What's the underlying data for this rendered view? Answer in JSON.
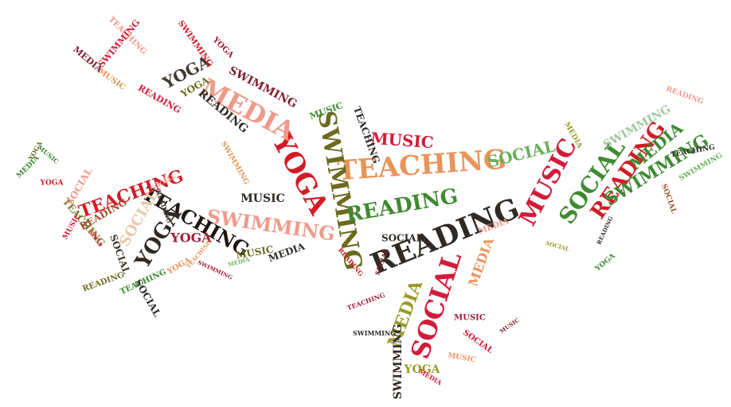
{
  "words": [
    {
      "text": "READING",
      "color": "#2e2a26",
      "size": 36,
      "rot": -22
    },
    {
      "text": "TEACHING",
      "color": "#e8945a",
      "size": 34,
      "rot": -4
    },
    {
      "text": "SWIMMING",
      "color": "#6b6a1e",
      "size": 30,
      "rot": 80
    },
    {
      "text": "YOGA",
      "color": "#d21c26",
      "size": 34,
      "rot": 62
    },
    {
      "text": "MEDIA",
      "color": "#ef9a8a",
      "size": 32,
      "rot": 28
    },
    {
      "text": "SOCIAL",
      "color": "#d21c3a",
      "size": 32,
      "rot": -72
    },
    {
      "text": "MUSIC",
      "color": "#d21c3a",
      "size": 30,
      "rot": -62
    },
    {
      "text": "SOCIAL",
      "color": "#3f8a32",
      "size": 28,
      "rot": -55
    },
    {
      "text": "READING",
      "color": "#d21c26",
      "size": 26,
      "rot": -55
    },
    {
      "text": "SWIMMING",
      "color": "#3f8a32",
      "size": 22,
      "rot": -32
    },
    {
      "text": "MEDIA",
      "color": "#3f8a32",
      "size": 20,
      "rot": -40
    },
    {
      "text": "READING",
      "color": "#3f8a32",
      "size": 26,
      "rot": -10
    },
    {
      "text": "SWIMMING",
      "color": "#ef9a8a",
      "size": 24,
      "rot": 8
    },
    {
      "text": "TEACHING",
      "color": "#1a1612",
      "size": 24,
      "rot": 30
    },
    {
      "text": "YOGA",
      "color": "#2e2a26",
      "size": 26,
      "rot": -58
    },
    {
      "text": "TEACHING",
      "color": "#d21c26",
      "size": 22,
      "rot": -20
    },
    {
      "text": "SOCIAL",
      "color": "#e8c8a8",
      "size": 18,
      "rot": -60
    },
    {
      "text": "MUSIC",
      "color": "#d21c3a",
      "size": 20,
      "rot": 4
    },
    {
      "text": "SOCIAL",
      "color": "#6bb05a",
      "size": 20,
      "rot": -14
    },
    {
      "text": "MEDIA",
      "color": "#9a9a2a",
      "size": 22,
      "rot": -70
    },
    {
      "text": "SWIMMING",
      "color": "#2e2a26",
      "size": 14,
      "rot": -90
    },
    {
      "text": "YOGA",
      "color": "#3f3a30",
      "size": 20,
      "rot": -28
    },
    {
      "text": "MUSIC",
      "color": "#2e2a26",
      "size": 14,
      "rot": 0
    },
    {
      "text": "MEDIA",
      "color": "#e8945a",
      "size": 16,
      "rot": -70
    },
    {
      "text": "YOGA",
      "color": "#a01e3a",
      "size": 16,
      "rot": 0
    },
    {
      "text": "READING",
      "color": "#2e2a26",
      "size": 14,
      "rot": 40
    },
    {
      "text": "SWIMMING",
      "color": "#7a2030",
      "size": 14,
      "rot": 28
    },
    {
      "text": "MUSIC",
      "color": "#6b6a1e",
      "size": 12,
      "rot": -10
    },
    {
      "text": "MEDIA",
      "color": "#2e2a26",
      "size": 12,
      "rot": -20
    },
    {
      "text": "SOCIAL",
      "color": "#2e2a26",
      "size": 12,
      "rot": 0
    },
    {
      "text": "YOGA",
      "color": "#9a9a2a",
      "size": 14,
      "rot": 0
    },
    {
      "text": "TEACHING",
      "color": "#7a7a2a",
      "size": 12,
      "rot": 50
    },
    {
      "text": "READING",
      "color": "#a0522d",
      "size": 12,
      "rot": -30
    },
    {
      "text": "SOCIAL",
      "color": "#2e2a26",
      "size": 12,
      "rot": 60
    },
    {
      "text": "SWIMMING",
      "color": "#a0c8a0",
      "size": 14,
      "rot": -30
    },
    {
      "text": "MUSIC",
      "color": "#3f8a32",
      "size": 11,
      "rot": -20
    },
    {
      "text": "SOCIAL",
      "color": "#3f3a30",
      "size": 12,
      "rot": 70
    },
    {
      "text": "SOCIAL",
      "color": "#ef9a8a",
      "size": 12,
      "rot": -60
    },
    {
      "text": "SWIMMING",
      "color": "#d21c3a",
      "size": 11,
      "rot": -50
    },
    {
      "text": "TEACHING",
      "color": "#ef9a8a",
      "size": 10,
      "rot": 45
    },
    {
      "text": "MUSIC",
      "color": "#e8945a",
      "size": 10,
      "rot": 35
    },
    {
      "text": "READING",
      "color": "#d21c3a",
      "size": 11,
      "rot": 30
    },
    {
      "text": "SWIMMING",
      "color": "#d21c26",
      "size": 10,
      "rot": 55
    },
    {
      "text": "YOGA",
      "color": "#a01e3a",
      "size": 10,
      "rot": 45
    },
    {
      "text": "MEDIA",
      "color": "#7a2030",
      "size": 11,
      "rot": 40
    },
    {
      "text": "YOGA",
      "color": "#6b6a1e",
      "size": 12,
      "rot": -30
    },
    {
      "text": "TEACHING",
      "color": "#2e2a26",
      "size": 12,
      "rot": 70
    },
    {
      "text": "MEDIA",
      "color": "#ef9a8a",
      "size": 10,
      "rot": -20
    },
    {
      "text": "SOCIAL",
      "color": "#d21c3a",
      "size": 10,
      "rot": 35
    },
    {
      "text": "MUSIC",
      "color": "#a01e3a",
      "size": 10,
      "rot": 0
    },
    {
      "text": "YOGA",
      "color": "#e8945a",
      "size": 10,
      "rot": -30
    },
    {
      "text": "READING",
      "color": "#6b6a1e",
      "size": 10,
      "rot": -20
    },
    {
      "text": "TEACHING",
      "color": "#3f8a32",
      "size": 10,
      "rot": -25
    },
    {
      "text": "SWIMMING",
      "color": "#e8945a",
      "size": 9,
      "rot": 60
    },
    {
      "text": "MEDIA",
      "color": "#3f8a32",
      "size": 9,
      "rot": -45
    },
    {
      "text": "YOGA",
      "color": "#d21c26",
      "size": 9,
      "rot": 0
    },
    {
      "text": "MUSIC",
      "color": "#d21c3a",
      "size": 9,
      "rot": -60
    },
    {
      "text": "SOCIAL",
      "color": "#a0522d",
      "size": 9,
      "rot": 70
    },
    {
      "text": "READING",
      "color": "#ef9a8a",
      "size": 9,
      "rot": 20
    },
    {
      "text": "TEACHING",
      "color": "#2e2a26",
      "size": 9,
      "rot": -10
    },
    {
      "text": "SWIMMING",
      "color": "#6bb05a",
      "size": 9,
      "rot": -30
    },
    {
      "text": "MEDIA",
      "color": "#9a9a2a",
      "size": 9,
      "rot": 60
    },
    {
      "text": "YOGA",
      "color": "#3f8a32",
      "size": 9,
      "rot": -40
    },
    {
      "text": "MUSIC",
      "color": "#e8945a",
      "size": 9,
      "rot": 10
    },
    {
      "text": "SOCIAL",
      "color": "#7a2030",
      "size": 8,
      "rot": -70
    },
    {
      "text": "READING",
      "color": "#d21c26",
      "size": 8,
      "rot": 50
    },
    {
      "text": "TEACHING",
      "color": "#a01e3a",
      "size": 8,
      "rot": -20
    },
    {
      "text": "SWIMMING",
      "color": "#2e2a26",
      "size": 8,
      "rot": 0
    },
    {
      "text": "MEDIA",
      "color": "#d21c3a",
      "size": 8,
      "rot": 30
    },
    {
      "text": "YOGA",
      "color": "#6b6a1e",
      "size": 8,
      "rot": -60
    },
    {
      "text": "MUSIC",
      "color": "#3f8a32",
      "size": 8,
      "rot": 40
    },
    {
      "text": "SOCIAL",
      "color": "#ef9a8a",
      "size": 8,
      "rot": -30
    },
    {
      "text": "READING",
      "color": "#3f3a30",
      "size": 8,
      "rot": 70
    },
    {
      "text": "TEACHING",
      "color": "#e8945a",
      "size": 7,
      "rot": -50
    },
    {
      "text": "SWIMMING",
      "color": "#a01e3a",
      "size": 7,
      "rot": 25
    },
    {
      "text": "MEDIA",
      "color": "#6bb05a",
      "size": 7,
      "rot": -15
    },
    {
      "text": "YOGA",
      "color": "#d21c26",
      "size": 7,
      "rot": 55
    },
    {
      "text": "MUSIC",
      "color": "#7a2030",
      "size": 7,
      "rot": -35
    },
    {
      "text": "SOCIAL",
      "color": "#9a9a2a",
      "size": 7,
      "rot": 15
    },
    {
      "text": "READING",
      "color": "#2e2a26",
      "size": 7,
      "rot": -65
    }
  ]
}
